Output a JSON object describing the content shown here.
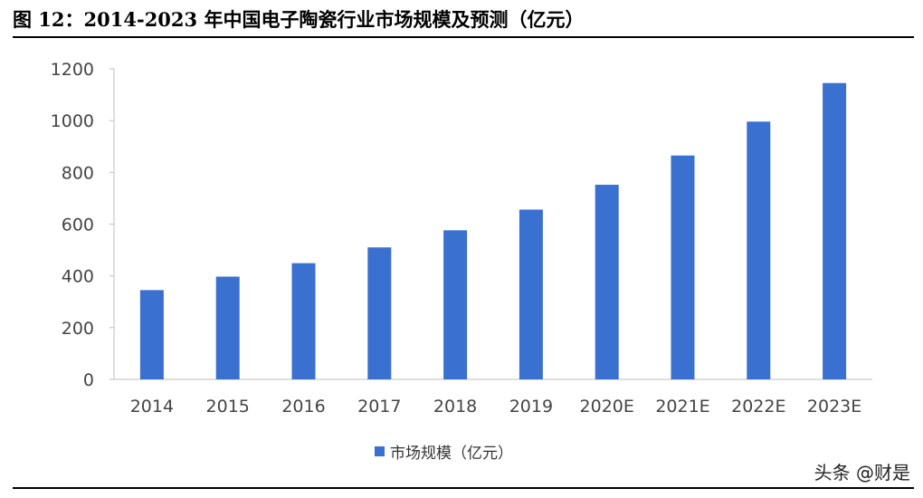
{
  "figure": {
    "title": "图 12：2014-2023 年中国电子陶瓷行业市场规模及预测（亿元）"
  },
  "watermark": "头条 @财是",
  "colors": {
    "bar": "#3A70D0",
    "axis": "#BFBFBF",
    "tick_text": "#444444"
  },
  "chart_data": {
    "type": "bar",
    "title": "图 12：2014-2023 年中国电子陶瓷行业市场规模及预测（亿元）",
    "categories": [
      "2014",
      "2015",
      "2016",
      "2017",
      "2018",
      "2019",
      "2020E",
      "2021E",
      "2022E",
      "2023E"
    ],
    "series": [
      {
        "name": "市场规模（亿元）",
        "values": [
          345,
          397,
          449,
          510,
          576,
          656,
          752,
          865,
          996,
          1145
        ]
      }
    ],
    "ylim": [
      0,
      1200
    ],
    "yticks": [
      "0",
      "200",
      "400",
      "600",
      "800",
      "1000",
      "1200"
    ],
    "grid": false,
    "legend": "bottom-center"
  }
}
